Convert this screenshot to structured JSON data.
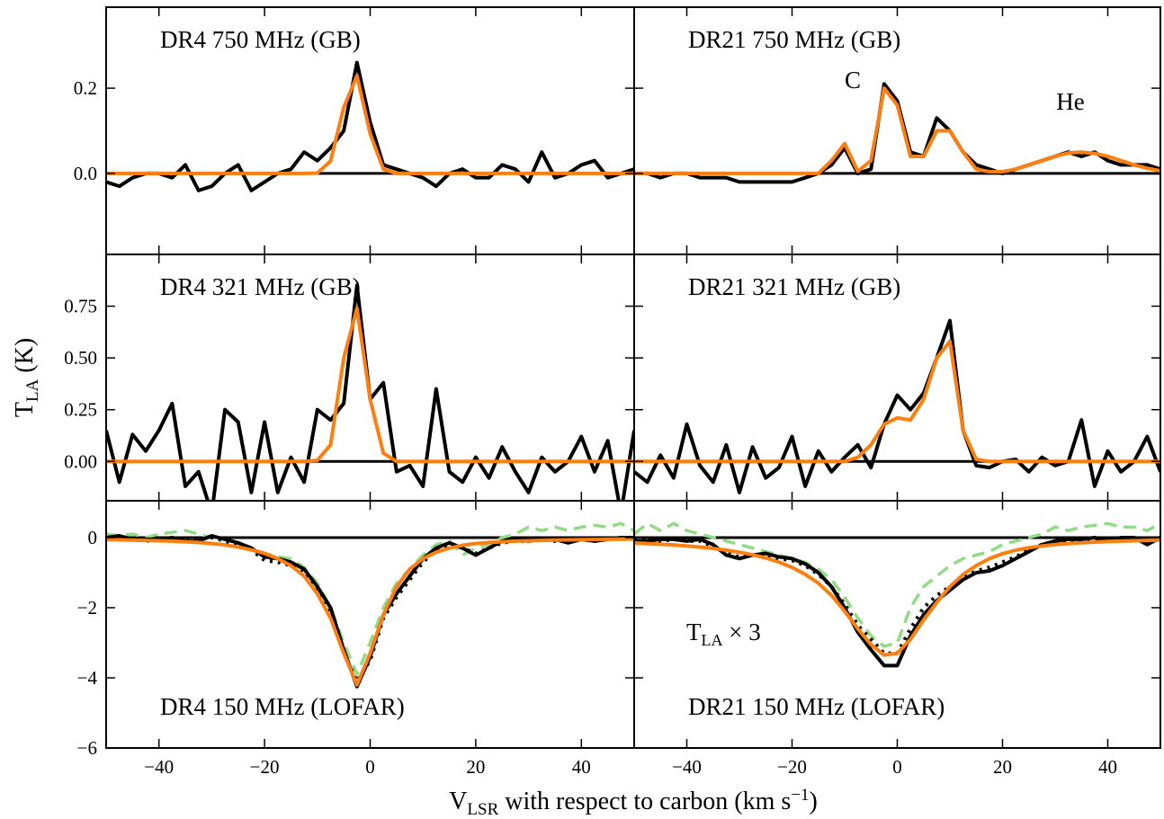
{
  "figure": {
    "ylabel": {
      "main": "T",
      "sub": "LA",
      "rest": " (K)"
    },
    "xlabel": {
      "main": "V",
      "sub": "LSR",
      "rest": " with respect to carbon (km s",
      "sup": "−1",
      "end": ")"
    }
  },
  "chart_data": [
    {
      "type": "line",
      "title": "DR4 750 MHz (GB)",
      "xlim": [
        -50,
        50
      ],
      "ylim": [
        -0.19,
        0.39
      ],
      "xticks": [
        -40,
        -20,
        0,
        20,
        40
      ],
      "yticks": [
        {
          "value": 0,
          "label": "0.0"
        },
        0.2
      ],
      "x": [
        -50,
        -47.5,
        -45,
        -42.5,
        -40,
        -37.5,
        -35,
        -32.5,
        -30,
        -27.5,
        -25,
        -22.5,
        -20,
        -17.5,
        -15,
        -12.5,
        -10,
        -7.5,
        -5,
        -2.5,
        0,
        2.5,
        5,
        7.5,
        10,
        12.5,
        15,
        17.5,
        20,
        22.5,
        25,
        27.5,
        30,
        32.5,
        35,
        37.5,
        40,
        42.5,
        45,
        47.5,
        50
      ],
      "series": [
        {
          "color": "#000000",
          "style": "solid",
          "values": [
            -0.02,
            -0.03,
            -0.01,
            0,
            0,
            -0.01,
            0.02,
            -0.04,
            -0.03,
            0,
            0.02,
            -0.04,
            -0.02,
            0,
            0.01,
            0.05,
            0.03,
            0.06,
            0.1,
            0.26,
            0.12,
            0.02,
            0.01,
            0,
            -0.01,
            -0.03,
            0,
            0.01,
            -0.01,
            -0.01,
            0.02,
            0.01,
            -0.02,
            0.05,
            -0.01,
            0,
            0.02,
            0.03,
            -0.01,
            0,
            0.01
          ]
        },
        {
          "color": "#ff7f0e",
          "style": "solid",
          "values": [
            0,
            0,
            0,
            0,
            0,
            0,
            0,
            0,
            0,
            0,
            0,
            0,
            0,
            0,
            0,
            0,
            0.001,
            0.029,
            0.155,
            0.229,
            0.093,
            0.01,
            0,
            0,
            0,
            0,
            0,
            0,
            0,
            0,
            0,
            0,
            0,
            0,
            0,
            0,
            0,
            0,
            0,
            0,
            0
          ]
        }
      ]
    },
    {
      "type": "line",
      "title": "DR21 750 MHz (GB)",
      "xlim": [
        -50,
        50
      ],
      "ylim": [
        -0.19,
        0.39
      ],
      "xticks": [
        -40,
        -20,
        0,
        20,
        40
      ],
      "yticks": [
        0,
        0.2
      ],
      "annotations": [
        {
          "text": "C"
        },
        {
          "text": "He"
        }
      ],
      "x": [
        -50,
        -47.5,
        -45,
        -42.5,
        -40,
        -37.5,
        -35,
        -32.5,
        -30,
        -27.5,
        -25,
        -22.5,
        -20,
        -17.5,
        -15,
        -12.5,
        -10,
        -7.5,
        -5,
        -2.5,
        0,
        2.5,
        5,
        7.5,
        10,
        12.5,
        15,
        17.5,
        20,
        22.5,
        25,
        27.5,
        30,
        32.5,
        35,
        37.5,
        40,
        42.5,
        45,
        47.5,
        50
      ],
      "series": [
        {
          "color": "#000000",
          "style": "solid",
          "values": [
            0,
            0,
            -0.01,
            0,
            0,
            -0.01,
            -0.01,
            -0.01,
            -0.02,
            -0.02,
            -0.02,
            -0.02,
            -0.02,
            -0.01,
            0,
            0.02,
            0.06,
            0,
            0.01,
            0.21,
            0.17,
            0.05,
            0.04,
            0.13,
            0.1,
            0.05,
            0.02,
            0.01,
            0,
            0.01,
            0.02,
            0.03,
            0.04,
            0.05,
            0.04,
            0.05,
            0.03,
            0.02,
            0.02,
            0.02,
            0.01
          ]
        },
        {
          "color": "#ff7f0e",
          "style": "solid",
          "values": [
            0,
            0,
            0,
            0,
            0,
            0,
            0,
            0,
            0,
            0,
            0,
            0,
            0,
            0,
            0,
            0.03,
            0.07,
            0.005,
            0.03,
            0.2,
            0.16,
            0.04,
            0.04,
            0.1,
            0.1,
            0.05,
            0.01,
            0.004,
            0.004,
            0.01,
            0.02,
            0.03,
            0.04,
            0.048,
            0.05,
            0.047,
            0.04,
            0.03,
            0.02,
            0.012,
            0.006
          ]
        }
      ]
    },
    {
      "type": "line",
      "title": "DR4 321 MHz (GB)",
      "xlim": [
        -50,
        50
      ],
      "ylim": [
        -0.19,
        1.0
      ],
      "xticks": [
        -40,
        -20,
        0,
        20,
        40
      ],
      "yticks": [
        {
          "value": 0,
          "label": "0.00"
        },
        0.25,
        {
          "value": 0.5,
          "label": "0.50"
        },
        0.75
      ],
      "x": [
        -50,
        -47.5,
        -45,
        -42.5,
        -40,
        -37.5,
        -35,
        -32.5,
        -30,
        -27.5,
        -25,
        -22.5,
        -20,
        -17.5,
        -15,
        -12.5,
        -10,
        -7.5,
        -5,
        -2.5,
        0,
        2.5,
        5,
        7.5,
        10,
        12.5,
        15,
        17.5,
        20,
        22.5,
        25,
        27.5,
        30,
        32.5,
        35,
        37.5,
        40,
        42.5,
        45,
        47.5,
        50
      ],
      "series": [
        {
          "color": "#000000",
          "style": "solid",
          "values": [
            0.15,
            -0.1,
            0.13,
            0.05,
            0.15,
            0.28,
            -0.12,
            -0.05,
            -0.25,
            0.25,
            0.19,
            -0.15,
            0.19,
            -0.15,
            0.02,
            -0.1,
            0.25,
            0.2,
            0.28,
            0.85,
            0.3,
            0.38,
            -0.05,
            -0.02,
            -0.12,
            0.35,
            -0.05,
            -0.1,
            0.02,
            -0.08,
            0.07,
            -0.05,
            -0.15,
            0.02,
            -0.05,
            0,
            0.12,
            -0.05,
            0.1,
            -0.25,
            0.15
          ]
        },
        {
          "color": "#ff7f0e",
          "style": "solid",
          "values": [
            0,
            0,
            0,
            0,
            0,
            0,
            0,
            0,
            0,
            0,
            0,
            0,
            0,
            0,
            0,
            0,
            0.005,
            0.08,
            0.5,
            0.74,
            0.3,
            0.04,
            0,
            0,
            0,
            0,
            0,
            0,
            0,
            0,
            0,
            0,
            0,
            0,
            0,
            0,
            0,
            0,
            0,
            0,
            0
          ]
        }
      ]
    },
    {
      "type": "line",
      "title": "DR21 321 MHz (GB)",
      "xlim": [
        -50,
        50
      ],
      "ylim": [
        -0.19,
        1.0
      ],
      "xticks": [
        -40,
        -20,
        0,
        20,
        40
      ],
      "yticks": [
        0,
        0.25,
        0.5,
        0.75
      ],
      "x": [
        -50,
        -47.5,
        -45,
        -42.5,
        -40,
        -37.5,
        -35,
        -32.5,
        -30,
        -27.5,
        -25,
        -22.5,
        -20,
        -17.5,
        -15,
        -12.5,
        -10,
        -7.5,
        -5,
        -2.5,
        0,
        2.5,
        5,
        7.5,
        10,
        12.5,
        15,
        17.5,
        20,
        22.5,
        25,
        27.5,
        30,
        32.5,
        35,
        37.5,
        40,
        42.5,
        45,
        47.5,
        50
      ],
      "series": [
        {
          "color": "#000000",
          "style": "solid",
          "values": [
            -0.05,
            -0.1,
            0.03,
            -0.08,
            0.18,
            -0.02,
            -0.1,
            0.08,
            -0.15,
            0.07,
            -0.08,
            -0.03,
            0.12,
            -0.12,
            0.05,
            -0.05,
            0.02,
            0.08,
            -0.03,
            0.18,
            0.32,
            0.25,
            0.33,
            0.5,
            0.68,
            0.15,
            -0.02,
            -0.03,
            0,
            0.01,
            -0.05,
            0.02,
            -0.02,
            0,
            0.2,
            -0.12,
            0.05,
            -0.05,
            0,
            0.12,
            -0.05
          ]
        },
        {
          "color": "#ff7f0e",
          "style": "solid",
          "values": [
            0,
            0,
            0,
            0,
            0,
            0,
            0,
            0,
            0,
            0,
            0,
            0,
            0,
            0,
            0,
            0,
            0,
            0.02,
            0.08,
            0.18,
            0.21,
            0.2,
            0.3,
            0.5,
            0.58,
            0.15,
            0.01,
            0,
            0,
            0,
            0,
            0,
            0,
            0,
            0,
            0,
            0,
            0,
            0,
            0,
            0
          ]
        }
      ]
    },
    {
      "type": "line",
      "title": "DR4 150 MHz (LOFAR)",
      "xlim": [
        -50,
        50
      ],
      "ylim": [
        -6,
        1.05
      ],
      "xticks": [
        {
          "value": -40,
          "label": "−40"
        },
        {
          "value": -20,
          "label": "−20"
        },
        0,
        20,
        40
      ],
      "yticks": [
        {
          "value": -6,
          "label": "−6"
        },
        {
          "value": -4,
          "label": "−4"
        },
        {
          "value": -2,
          "label": "−2"
        },
        0
      ],
      "x": [
        -50,
        -47.5,
        -45,
        -42.5,
        -40,
        -37.5,
        -35,
        -32.5,
        -30,
        -27.5,
        -25,
        -22.5,
        -20,
        -17.5,
        -15,
        -12.5,
        -10,
        -7.5,
        -5,
        -2.5,
        0,
        2.5,
        5,
        7.5,
        10,
        12.5,
        15,
        17.5,
        20,
        22.5,
        25,
        27.5,
        30,
        32.5,
        35,
        37.5,
        40,
        42.5,
        45,
        47.5,
        50
      ],
      "series": [
        {
          "color": "#90dc84",
          "style": "dashed",
          "values": [
            0.1,
            0.05,
            0.1,
            0,
            0.1,
            0.15,
            0.2,
            0.1,
            0,
            -0.05,
            -0.15,
            -0.3,
            -0.45,
            -0.55,
            -0.6,
            -0.85,
            -1.3,
            -2,
            -3,
            -3.9,
            -3,
            -2,
            -1.3,
            -0.9,
            -0.5,
            -0.2,
            -0.1,
            -0.5,
            -0.3,
            -0.2,
            0,
            0.1,
            0.3,
            0.2,
            0.3,
            0.2,
            0.3,
            0.35,
            0.3,
            0.4,
            0.2
          ]
        },
        {
          "color": "#000000",
          "style": "dotted",
          "values": [
            0,
            0,
            -0.05,
            -0.1,
            -0.05,
            -0.05,
            -0.1,
            -0.05,
            0,
            -0.1,
            -0.2,
            -0.35,
            -0.65,
            -0.7,
            -0.8,
            -0.95,
            -1.45,
            -2.1,
            -3.3,
            -4.1,
            -3.5,
            -2.3,
            -1.7,
            -1.2,
            -0.7,
            -0.35,
            -0.2,
            -0.3,
            -0.45,
            -0.3,
            -0.15,
            -0.1,
            -0.1,
            -0.05,
            -0.1,
            -0.1,
            -0.05,
            -0.1,
            -0.05,
            0,
            0
          ]
        },
        {
          "color": "#000000",
          "style": "solid",
          "values": [
            0,
            0.05,
            -0.05,
            -0.05,
            -0.05,
            0,
            -0.1,
            -0.1,
            0.05,
            -0.05,
            -0.15,
            -0.3,
            -0.55,
            -0.6,
            -0.7,
            -0.9,
            -1.4,
            -2,
            -3.2,
            -4.25,
            -3.4,
            -2.2,
            -1.6,
            -1.1,
            -0.6,
            -0.3,
            -0.15,
            -0.3,
            -0.5,
            -0.3,
            -0.1,
            -0.05,
            -0.1,
            -0.05,
            -0.05,
            -0.15,
            -0.05,
            -0.1,
            -0.05,
            0,
            0
          ]
        },
        {
          "color": "#ff7f0e",
          "style": "solid",
          "values": [
            -0.06,
            -0.065,
            -0.07,
            -0.08,
            -0.09,
            -0.1,
            -0.12,
            -0.14,
            -0.17,
            -0.21,
            -0.27,
            -0.35,
            -0.45,
            -0.6,
            -0.8,
            -1.1,
            -1.6,
            -2.3,
            -3.3,
            -4.2,
            -3.3,
            -2.2,
            -1.4,
            -0.9,
            -0.6,
            -0.42,
            -0.3,
            -0.22,
            -0.17,
            -0.14,
            -0.12,
            -0.1,
            -0.09,
            -0.08,
            -0.07,
            -0.065,
            -0.06,
            -0.055,
            -0.05,
            -0.045,
            -0.04
          ]
        }
      ]
    },
    {
      "type": "line",
      "title": "DR21 150 MHz (LOFAR)",
      "xlim": [
        -50,
        50
      ],
      "ylim": [
        -6,
        1.05
      ],
      "xticks": [
        {
          "value": -40,
          "label": "−40"
        },
        {
          "value": -20,
          "label": "−20"
        },
        0,
        20,
        40
      ],
      "yticks": [
        -6,
        -4,
        -2,
        0
      ],
      "annotations": [
        {
          "main": "T",
          "sub": "LA",
          "rest": " × 3"
        }
      ],
      "x": [
        -50,
        -47.5,
        -45,
        -42.5,
        -40,
        -37.5,
        -35,
        -32.5,
        -30,
        -27.5,
        -25,
        -22.5,
        -20,
        -17.5,
        -15,
        -12.5,
        -10,
        -7.5,
        -5,
        -2.5,
        0,
        2.5,
        5,
        7.5,
        10,
        12.5,
        15,
        17.5,
        20,
        22.5,
        25,
        27.5,
        30,
        32.5,
        35,
        37.5,
        40,
        42.5,
        45,
        47.5,
        50
      ],
      "series": [
        {
          "color": "#90dc84",
          "style": "dashed",
          "values": [
            0.1,
            0.4,
            0.2,
            0.4,
            0.2,
            0.1,
            0,
            -0.1,
            -0.2,
            -0.3,
            -0.4,
            -0.5,
            -0.6,
            -0.7,
            -0.9,
            -1.2,
            -1.7,
            -2.3,
            -2.8,
            -3.1,
            -3,
            -2,
            -1.4,
            -1.1,
            -0.8,
            -0.6,
            -0.5,
            -0.4,
            -0.2,
            -0.1,
            0,
            0.1,
            0.3,
            0.2,
            0.3,
            0.35,
            0.4,
            0.3,
            0.3,
            0.2,
            0.4
          ]
        },
        {
          "color": "#000000",
          "style": "dotted",
          "values": [
            -0.05,
            -0.1,
            -0.1,
            -0.05,
            -0.1,
            -0.1,
            -0.25,
            -0.45,
            -0.55,
            -0.5,
            -0.5,
            -0.6,
            -0.65,
            -0.8,
            -1.05,
            -1.4,
            -1.9,
            -2.5,
            -2.9,
            -3.3,
            -3.3,
            -2.6,
            -2,
            -1.65,
            -1.4,
            -1.15,
            -0.95,
            -0.85,
            -0.7,
            -0.55,
            -0.35,
            -0.2,
            -0.1,
            -0.1,
            -0.05,
            -0.05,
            -0.1,
            -0.05,
            0,
            -0.1,
            0
          ]
        },
        {
          "color": "#000000",
          "style": "solid",
          "values": [
            -0.1,
            -0.1,
            -0.05,
            -0.05,
            -0.1,
            -0.05,
            -0.2,
            -0.5,
            -0.6,
            -0.5,
            -0.45,
            -0.55,
            -0.6,
            -0.75,
            -1,
            -1.4,
            -2,
            -2.7,
            -3.2,
            -3.65,
            -3.65,
            -2.8,
            -2.2,
            -1.8,
            -1.5,
            -1.2,
            -1,
            -0.95,
            -0.8,
            -0.6,
            -0.4,
            -0.2,
            -0.1,
            -0.05,
            -0.05,
            0,
            -0.1,
            0,
            0,
            -0.2,
            0
          ]
        },
        {
          "color": "#ff7f0e",
          "style": "solid",
          "values": [
            -0.15,
            -0.17,
            -0.19,
            -0.21,
            -0.24,
            -0.27,
            -0.31,
            -0.36,
            -0.42,
            -0.49,
            -0.58,
            -0.7,
            -0.85,
            -1.05,
            -1.3,
            -1.65,
            -2.1,
            -2.6,
            -3.05,
            -3.35,
            -3.3,
            -2.9,
            -2.35,
            -1.85,
            -1.4,
            -1.05,
            -0.8,
            -0.6,
            -0.46,
            -0.36,
            -0.29,
            -0.24,
            -0.2,
            -0.17,
            -0.15,
            -0.13,
            -0.11,
            -0.1,
            -0.09,
            -0.08,
            -0.07
          ]
        }
      ]
    }
  ]
}
